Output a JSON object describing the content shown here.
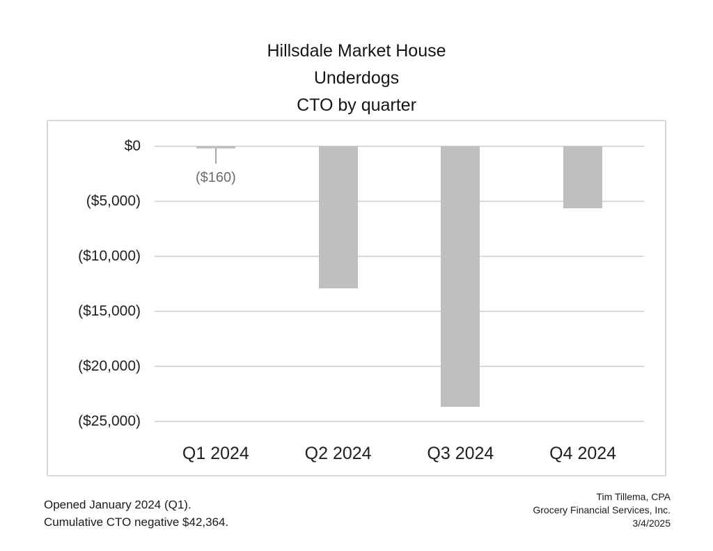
{
  "chart_data": {
    "type": "bar",
    "title": "Hillsdale Market House Underdogs CTO by quarter",
    "title_lines": [
      "Hillsdale Market House",
      "Underdogs",
      "CTO by quarter"
    ],
    "categories": [
      "Q1 2024",
      "Q2 2024",
      "Q3 2024",
      "Q4 2024"
    ],
    "values": [
      -160,
      -12900,
      -23674,
      -5630
    ],
    "values_note": "Q1 labeled exactly ($160); Q2-Q4 estimated from gridlines, consistent with cumulative -$42,364",
    "q1_data_label": "($160)",
    "y_tick_labels": [
      "$0",
      "($5,000)",
      "($10,000)",
      "($15,000)",
      "($20,000)",
      "($25,000)"
    ],
    "y_tick_values": [
      0,
      -5000,
      -10000,
      -15000,
      -20000,
      -25000
    ],
    "ylim": [
      -25000,
      0
    ],
    "xlabel": "",
    "ylabel": "",
    "grid": "horizontal",
    "legend": "none",
    "bar_color": "#bfbfbf",
    "gridline_color": "#d9d9d9",
    "plot_border_color": "#d9d9d9",
    "leader_line_color": "#a6a6a6",
    "data_label_color": "#6b6b6b",
    "text_color": "#1f1f1f"
  },
  "footer": {
    "left_lines": [
      "Opened January 2024 (Q1).",
      "Cumulative CTO negative $42,364."
    ],
    "right_lines": [
      "Tim Tillema, CPA",
      "Grocery Financial Services, Inc.",
      "3/4/2025"
    ]
  }
}
